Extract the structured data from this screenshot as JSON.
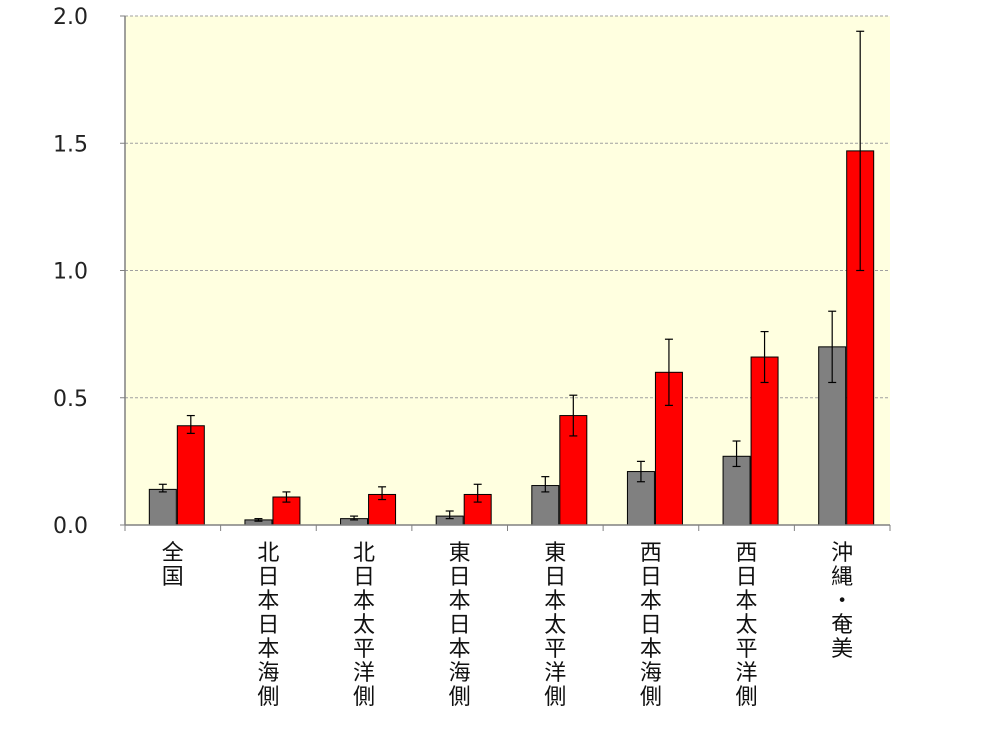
{
  "chart_data": {
    "type": "bar",
    "categories": [
      "全国",
      "北日本日本海側",
      "北日本太平洋側",
      "東日本日本海側",
      "東日本太平洋側",
      "西日本日本海側",
      "西日本太平洋側",
      "沖縄・奄美"
    ],
    "series": [
      {
        "color": "#808080",
        "values": [
          0.14,
          0.02,
          0.025,
          0.035,
          0.155,
          0.21,
          0.27,
          0.7
        ],
        "error_low": [
          0.13,
          0.015,
          0.02,
          0.025,
          0.13,
          0.17,
          0.23,
          0.56
        ],
        "error_high": [
          0.16,
          0.025,
          0.035,
          0.055,
          0.19,
          0.25,
          0.33,
          0.84
        ]
      },
      {
        "color": "#ff0000",
        "values": [
          0.39,
          0.11,
          0.12,
          0.12,
          0.43,
          0.6,
          0.66,
          1.47
        ],
        "error_low": [
          0.36,
          0.09,
          0.1,
          0.09,
          0.35,
          0.47,
          0.56,
          1.0
        ],
        "error_high": [
          0.43,
          0.13,
          0.15,
          0.16,
          0.51,
          0.73,
          0.76,
          1.94
        ]
      }
    ],
    "ylim": [
      0,
      2.0
    ],
    "yticks": [
      "0.0",
      "0.5",
      "1.0",
      "1.5",
      "2.0"
    ],
    "grid": true,
    "background": "#ffffe0",
    "xlabel": "",
    "ylabel": "",
    "title": ""
  }
}
